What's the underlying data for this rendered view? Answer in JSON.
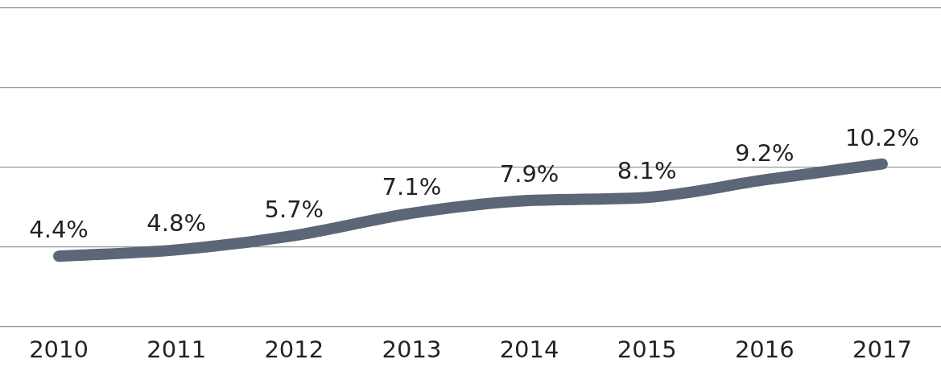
{
  "chart_data": {
    "type": "line",
    "categories": [
      "2010",
      "2011",
      "2012",
      "2013",
      "2014",
      "2015",
      "2016",
      "2017"
    ],
    "series": [
      {
        "color": "#5b6676",
        "values": [
          4.4,
          4.8,
          5.7,
          7.1,
          7.9,
          8.1,
          9.2,
          10.2
        ],
        "value_labels": [
          "4.4%",
          "4.8%",
          "5.7%",
          "7.1%",
          "7.9%",
          "8.1%",
          "9.2%",
          "10.2%"
        ]
      }
    ],
    "ylim": [
      0,
      20
    ],
    "yticks": [
      {
        "value": 0,
        "label": null
      },
      {
        "value": 5,
        "label": null
      },
      {
        "value": 10,
        "label": null
      },
      {
        "value": 15,
        "label": null
      },
      {
        "value": 20,
        "label": null
      }
    ],
    "grid": "y",
    "tick_labels": "x",
    "legend": false,
    "marker": "none",
    "line_style": "solid"
  }
}
